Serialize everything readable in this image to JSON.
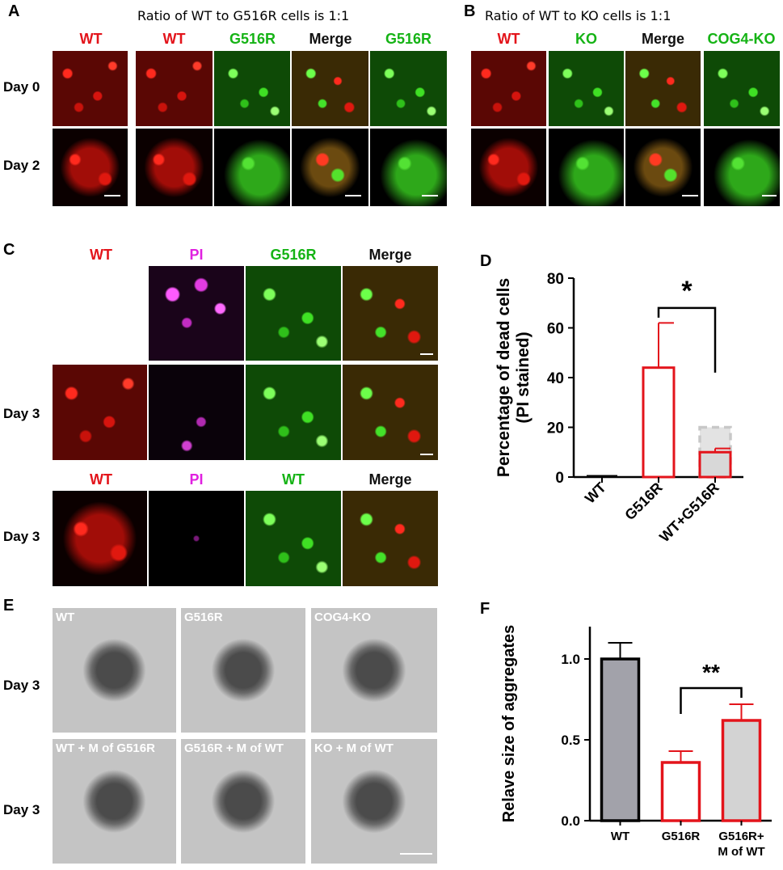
{
  "panels": {
    "A": {
      "letter": "A",
      "title": "Ratio of WT to G516R cells is 1:1",
      "col_labels": [
        "WT",
        "WT",
        "G516R",
        "Merge",
        "G516R"
      ],
      "row_labels": [
        "Day 0",
        "Day 2"
      ]
    },
    "B": {
      "letter": "B",
      "title": "Ratio of WT to KO cells is 1:1",
      "col_labels": [
        "WT",
        "KO",
        "Merge",
        "COG4-KO"
      ]
    },
    "C": {
      "letter": "C",
      "top_labels": [
        "WT",
        "PI",
        "G516R",
        "Merge"
      ],
      "bottom_labels": [
        "WT",
        "PI",
        "WT",
        "Merge"
      ],
      "row_labels": [
        "Day 3",
        "Day 3"
      ]
    },
    "D": {
      "letter": "D"
    },
    "E": {
      "letter": "E",
      "row_labels": [
        "Day 3",
        "Day 3"
      ],
      "image_labels": [
        "WT",
        "G516R",
        "COG4-KO",
        "WT + M of G516R",
        "G516R + M of WT",
        "KO + M of WT"
      ]
    },
    "F": {
      "letter": "F"
    }
  },
  "chart_data": [
    {
      "panel": "D",
      "type": "bar",
      "categories": [
        "WT",
        "G516R",
        "WT+G516R"
      ],
      "values": [
        0,
        44,
        10
      ],
      "errors": [
        0,
        18,
        1.5
      ],
      "ylabel": "Percentage of dead cells (PI stained)",
      "ylabel_lines": [
        "Percentage of dead cells",
        "(PI stained)"
      ],
      "ylim": [
        0,
        80
      ],
      "yticks": [
        0,
        20,
        40,
        60,
        80
      ],
      "dashed_box_value": 20,
      "significance": {
        "from": "G516R",
        "to": "WT+G516R",
        "label": "*"
      },
      "colors": {
        "WT": "#000000",
        "G516R": "#e3141b",
        "WT+G516R": "#e3141b"
      }
    },
    {
      "panel": "F",
      "type": "bar",
      "categories": [
        "WT",
        "G516R",
        "G516R+ M of WT"
      ],
      "category_lines": [
        [
          "WT"
        ],
        [
          "G516R"
        ],
        [
          "G516R+",
          "M of WT"
        ]
      ],
      "values": [
        1.0,
        0.36,
        0.62
      ],
      "errors": [
        0.1,
        0.07,
        0.1
      ],
      "ylabel": "Relave size of aggregates",
      "ylim": [
        0,
        1.2
      ],
      "yticks": [
        0.0,
        0.5,
        1.0
      ],
      "ytick_labels": [
        "0.0",
        "0.5",
        "1.0"
      ],
      "significance": {
        "from": "G516R",
        "to": "G516R+ M of WT",
        "label": "**"
      },
      "fills": {
        "WT": "#a2a2aa",
        "G516R": "#ffffff",
        "G516R+ M of WT": "#d3d3d3"
      },
      "strokes": {
        "WT": "#000000",
        "G516R": "#e3141b",
        "G516R+ M of WT": "#e3141b"
      }
    }
  ]
}
